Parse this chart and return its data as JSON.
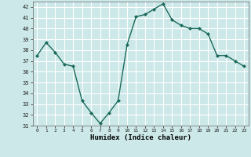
{
  "x": [
    0,
    1,
    2,
    3,
    4,
    5,
    6,
    7,
    8,
    9,
    10,
    11,
    12,
    13,
    14,
    15,
    16,
    17,
    18,
    19,
    20,
    21,
    22,
    23
  ],
  "y": [
    37.5,
    38.7,
    37.8,
    36.7,
    36.5,
    33.3,
    32.2,
    31.2,
    32.2,
    33.3,
    38.5,
    41.1,
    41.3,
    41.8,
    42.3,
    40.8,
    40.3,
    40.0,
    40.0,
    39.5,
    37.5,
    37.5,
    37.0,
    36.5
  ],
  "xlabel": "Humidex (Indice chaleur)",
  "ylim": [
    31,
    42.5
  ],
  "xlim": [
    -0.5,
    23.5
  ],
  "yticks": [
    31,
    32,
    33,
    34,
    35,
    36,
    37,
    38,
    39,
    40,
    41,
    42
  ],
  "xticks": [
    0,
    1,
    2,
    3,
    4,
    5,
    6,
    7,
    8,
    9,
    10,
    11,
    12,
    13,
    14,
    15,
    16,
    17,
    18,
    19,
    20,
    21,
    22,
    23
  ],
  "line_color": "#1a6b5a",
  "marker": "D",
  "marker_size": 2.0,
  "bg_color": "#cde8e8",
  "grid_color": "#ffffff",
  "line_width": 1.0
}
